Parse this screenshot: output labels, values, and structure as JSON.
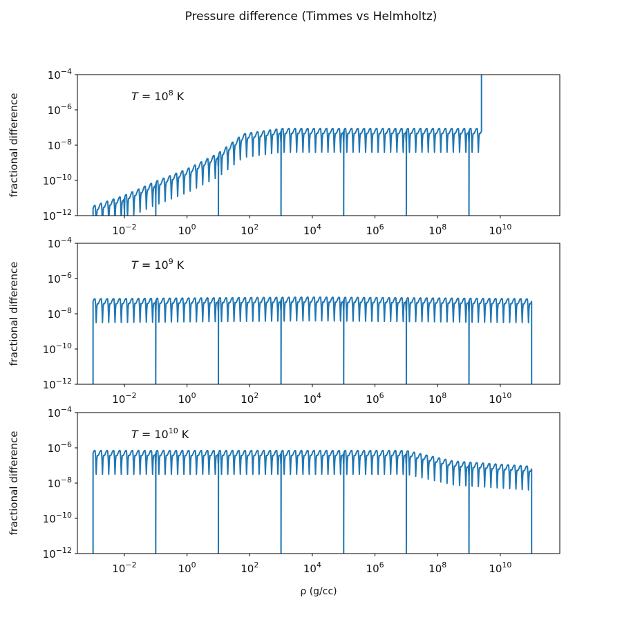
{
  "figure": {
    "title": "Pressure difference (Timmes vs Helmholtz)",
    "xlabel": "ρ (g/cc)"
  },
  "colors": {
    "line": "#1f77b4",
    "axis": "#000000",
    "text": "#111111"
  },
  "chart_data": [
    {
      "type": "line",
      "annotation": {
        "prefix": "T = 10",
        "exponent": "8",
        "suffix": " K"
      },
      "ylabel": "fractional difference",
      "xscale": "log",
      "yscale": "log",
      "xlim_log10": [
        -3.5,
        11.9
      ],
      "ylim_log10": [
        -12,
        -4
      ],
      "xticks": [
        {
          "base": "10",
          "exp": "−2",
          "log10": -2
        },
        {
          "base": "10",
          "exp": "0",
          "log10": 0
        },
        {
          "base": "10",
          "exp": "2",
          "log10": 2
        },
        {
          "base": "10",
          "exp": "4",
          "log10": 4
        },
        {
          "base": "10",
          "exp": "6",
          "log10": 6
        },
        {
          "base": "10",
          "exp": "8",
          "log10": 8
        },
        {
          "base": "10",
          "exp": "10",
          "log10": 10
        }
      ],
      "yticks": [
        {
          "base": "10",
          "exp": "−4",
          "log10": -4
        },
        {
          "base": "10",
          "exp": "−6",
          "log10": -6
        },
        {
          "base": "10",
          "exp": "−8",
          "log10": -8
        },
        {
          "base": "10",
          "exp": "−10",
          "log10": -10
        },
        {
          "base": "10",
          "exp": "−12",
          "log10": -12
        }
      ],
      "series": {
        "name": "fractional difference",
        "x_log10_range": [
          -3,
          9.4
        ],
        "envelope_log10_y": [
          {
            "x": -3,
            "y": -11.6
          },
          {
            "x": -2,
            "y": -11.0
          },
          {
            "x": -1,
            "y": -10.2
          },
          {
            "x": 0,
            "y": -9.5
          },
          {
            "x": 1,
            "y": -8.6
          },
          {
            "x": 1.8,
            "y": -7.5
          },
          {
            "x": 3,
            "y": -7.2
          },
          {
            "x": 9.4,
            "y": -7.2
          }
        ],
        "periodic_dips_per_decade": 5,
        "deep_dips_log10_x": [
          -2,
          -1,
          1,
          3,
          5,
          7,
          9
        ],
        "end_spike": {
          "x_log10": 9.4,
          "y_log10_to": -3.8
        }
      }
    },
    {
      "type": "line",
      "annotation": {
        "prefix": "T = 10",
        "exponent": "9",
        "suffix": " K"
      },
      "ylabel": "fractional difference",
      "xscale": "log",
      "yscale": "log",
      "xlim_log10": [
        -3.5,
        11.9
      ],
      "ylim_log10": [
        -12,
        -4
      ],
      "xticks": [
        {
          "base": "10",
          "exp": "−2",
          "log10": -2
        },
        {
          "base": "10",
          "exp": "0",
          "log10": 0
        },
        {
          "base": "10",
          "exp": "2",
          "log10": 2
        },
        {
          "base": "10",
          "exp": "4",
          "log10": 4
        },
        {
          "base": "10",
          "exp": "6",
          "log10": 6
        },
        {
          "base": "10",
          "exp": "8",
          "log10": 8
        },
        {
          "base": "10",
          "exp": "10",
          "log10": 10
        }
      ],
      "yticks": [
        {
          "base": "10",
          "exp": "−4",
          "log10": -4
        },
        {
          "base": "10",
          "exp": "−6",
          "log10": -6
        },
        {
          "base": "10",
          "exp": "−8",
          "log10": -8
        },
        {
          "base": "10",
          "exp": "−10",
          "log10": -10
        },
        {
          "base": "10",
          "exp": "−12",
          "log10": -12
        }
      ],
      "series": {
        "name": "fractional difference",
        "x_log10_range": [
          -3,
          11
        ],
        "envelope_log10_y": [
          {
            "x": -3,
            "y": -7.3
          },
          {
            "x": 4,
            "y": -7.2
          },
          {
            "x": 11,
            "y": -7.3
          }
        ],
        "periodic_dips_per_decade": 5,
        "deep_dips_log10_x": [
          -1,
          1,
          3,
          5,
          7,
          9
        ]
      }
    },
    {
      "type": "line",
      "annotation": {
        "prefix": "T = 10",
        "exponent": "10",
        "suffix": " K"
      },
      "ylabel": "fractional difference",
      "xscale": "log",
      "yscale": "log",
      "xlim_log10": [
        -3.5,
        11.9
      ],
      "ylim_log10": [
        -12,
        -4
      ],
      "xticks": [
        {
          "base": "10",
          "exp": "−2",
          "log10": -2
        },
        {
          "base": "10",
          "exp": "0",
          "log10": 0
        },
        {
          "base": "10",
          "exp": "2",
          "log10": 2
        },
        {
          "base": "10",
          "exp": "4",
          "log10": 4
        },
        {
          "base": "10",
          "exp": "6",
          "log10": 6
        },
        {
          "base": "10",
          "exp": "8",
          "log10": 8
        },
        {
          "base": "10",
          "exp": "10",
          "log10": 10
        }
      ],
      "yticks": [
        {
          "base": "10",
          "exp": "−4",
          "log10": -4
        },
        {
          "base": "10",
          "exp": "−6",
          "log10": -6
        },
        {
          "base": "10",
          "exp": "−8",
          "log10": -8
        },
        {
          "base": "10",
          "exp": "−10",
          "log10": -10
        },
        {
          "base": "10",
          "exp": "−12",
          "log10": -12
        }
      ],
      "series": {
        "name": "fractional difference",
        "x_log10_range": [
          -3,
          11
        ],
        "envelope_log10_y": [
          {
            "x": -3,
            "y": -6.3
          },
          {
            "x": 7,
            "y": -6.3
          },
          {
            "x": 8.5,
            "y": -6.9
          },
          {
            "x": 11,
            "y": -7.2
          }
        ],
        "periodic_dips_per_decade": 5,
        "deep_dips_log10_x": [
          -1,
          1,
          3,
          5,
          7,
          9
        ]
      }
    }
  ]
}
